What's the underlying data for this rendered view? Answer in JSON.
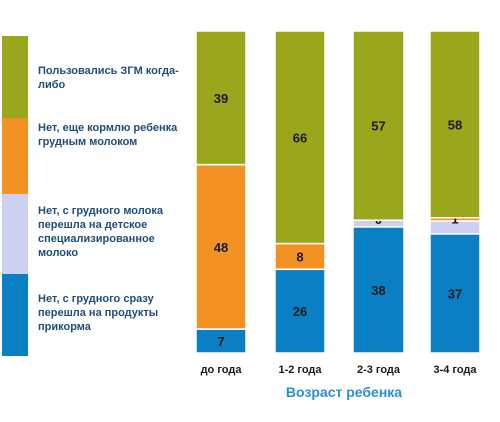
{
  "chart_data": {
    "type": "bar",
    "stacked": true,
    "title": "",
    "xlabel": "Возраст ребенка",
    "ylabel": "",
    "ylim": [
      0,
      100
    ],
    "grid": false,
    "legend_position": "left",
    "categories": [
      "до года",
      "1-2 года",
      "2-3 года",
      "3-4 года"
    ],
    "series": [
      {
        "name": "Нет, с грудного сразу перешла на продукты прикорма",
        "color": "#0a7fc4",
        "values": [
          7,
          26,
          38,
          37
        ]
      },
      {
        "name": "Нет, с грудного молока перешла на детское специализированное молоко",
        "color": "#cdd0f0",
        "values": [
          0,
          0,
          2,
          4
        ]
      },
      {
        "name": "Нет, еще кормлю ребенка грудным молоком",
        "color": "#f29124",
        "values": [
          48,
          8,
          0,
          1
        ]
      },
      {
        "name": "Пользовались ЗГМ когда-либо",
        "color": "#9aa61c",
        "values": [
          39,
          66,
          57,
          58
        ]
      }
    ],
    "data_labels": [
      [
        "7",
        "",
        "48",
        "39"
      ],
      [
        "26",
        "",
        "8",
        "66"
      ],
      [
        "38",
        "",
        "0",
        "57"
      ],
      [
        "37",
        "",
        "1",
        "58"
      ]
    ]
  }
}
